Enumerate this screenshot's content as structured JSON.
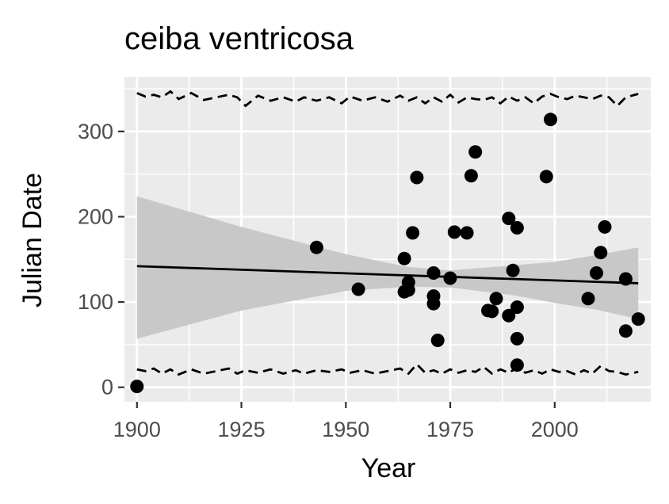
{
  "chart_data": {
    "type": "scatter",
    "title": "ceiba ventricosa",
    "xlabel": "Year",
    "ylabel": "Julian Date",
    "xlim": [
      1897,
      2023
    ],
    "ylim": [
      -17,
      364
    ],
    "x_ticks": [
      1900,
      1925,
      1950,
      1975,
      2000
    ],
    "y_ticks": [
      0,
      100,
      200,
      300
    ],
    "grid": true,
    "colors": {
      "panel": "#ebebeb",
      "grid": "#ffffff",
      "points": "#000000",
      "ribbon": "#c8c8c8",
      "tick_label": "#4d4d4d"
    },
    "points": [
      {
        "x": 1900,
        "y": 1
      },
      {
        "x": 1943,
        "y": 164
      },
      {
        "x": 1953,
        "y": 115
      },
      {
        "x": 1964,
        "y": 151
      },
      {
        "x": 1964,
        "y": 112
      },
      {
        "x": 1965,
        "y": 123
      },
      {
        "x": 1965,
        "y": 114
      },
      {
        "x": 1966,
        "y": 181
      },
      {
        "x": 1967,
        "y": 246
      },
      {
        "x": 1971,
        "y": 134
      },
      {
        "x": 1971,
        "y": 107
      },
      {
        "x": 1971,
        "y": 98
      },
      {
        "x": 1972,
        "y": 55
      },
      {
        "x": 1975,
        "y": 128
      },
      {
        "x": 1976,
        "y": 182
      },
      {
        "x": 1979,
        "y": 181
      },
      {
        "x": 1980,
        "y": 248
      },
      {
        "x": 1981,
        "y": 276
      },
      {
        "x": 1984,
        "y": 90
      },
      {
        "x": 1985,
        "y": 89
      },
      {
        "x": 1986,
        "y": 104
      },
      {
        "x": 1989,
        "y": 198
      },
      {
        "x": 1989,
        "y": 84
      },
      {
        "x": 1990,
        "y": 137
      },
      {
        "x": 1991,
        "y": 187
      },
      {
        "x": 1991,
        "y": 94
      },
      {
        "x": 1991,
        "y": 57
      },
      {
        "x": 1991,
        "y": 26
      },
      {
        "x": 1998,
        "y": 247
      },
      {
        "x": 1999,
        "y": 314
      },
      {
        "x": 2008,
        "y": 104
      },
      {
        "x": 2010,
        "y": 134
      },
      {
        "x": 2011,
        "y": 158
      },
      {
        "x": 2012,
        "y": 188
      },
      {
        "x": 2017,
        "y": 127
      },
      {
        "x": 2017,
        "y": 66
      },
      {
        "x": 2020,
        "y": 80
      }
    ],
    "trend_line": {
      "x": [
        1900,
        2020
      ],
      "y": [
        142,
        122
      ]
    },
    "confidence_band": {
      "x": [
        1900,
        1925,
        1950,
        1965,
        1975,
        1990,
        2000,
        2010,
        2020
      ],
      "lower": [
        57,
        90,
        113,
        118,
        117,
        108,
        99,
        91,
        80
      ],
      "upper": [
        224,
        188,
        156,
        141,
        137,
        143,
        147,
        155,
        164
      ]
    },
    "upper_dashed": {
      "x": [
        1900,
        1902,
        1904,
        1906,
        1908,
        1910,
        1913,
        1916,
        1919,
        1922,
        1924,
        1926,
        1929,
        1932,
        1935,
        1938,
        1940,
        1943,
        1946,
        1949,
        1951,
        1954,
        1957,
        1960,
        1963,
        1965,
        1967,
        1969,
        1971,
        1973,
        1975,
        1977,
        1979,
        1981,
        1983,
        1985,
        1987,
        1989,
        1991,
        1993,
        1995,
        1997,
        1999,
        2001,
        2003,
        2005,
        2007,
        2009,
        2011,
        2013,
        2015,
        2017,
        2020
      ],
      "y": [
        345,
        341,
        343,
        340,
        347,
        338,
        345,
        337,
        340,
        343,
        340,
        330,
        342,
        336,
        340,
        335,
        340,
        336,
        340,
        333,
        341,
        336,
        340,
        335,
        342,
        336,
        340,
        333,
        340,
        335,
        343,
        334,
        340,
        338,
        337,
        340,
        333,
        341,
        336,
        340,
        333,
        341,
        344,
        340,
        338,
        342,
        340,
        338,
        342,
        340,
        330,
        340,
        344
      ]
    },
    "lower_dashed": {
      "x": [
        1900,
        1902,
        1904,
        1906,
        1908,
        1910,
        1913,
        1916,
        1919,
        1922,
        1924,
        1926,
        1929,
        1932,
        1935,
        1938,
        1940,
        1943,
        1946,
        1949,
        1951,
        1954,
        1957,
        1960,
        1963,
        1965,
        1967,
        1969,
        1971,
        1973,
        1975,
        1977,
        1979,
        1981,
        1983,
        1985,
        1987,
        1989,
        1991,
        1993,
        1995,
        1997,
        1999,
        2001,
        2003,
        2005,
        2007,
        2009,
        2011,
        2013,
        2015,
        2017,
        2020
      ],
      "y": [
        21,
        19,
        22,
        16,
        21,
        15,
        21,
        16,
        19,
        22,
        16,
        20,
        17,
        21,
        16,
        20,
        16,
        20,
        18,
        21,
        17,
        20,
        16,
        19,
        22,
        16,
        27,
        17,
        20,
        16,
        21,
        17,
        20,
        18,
        24,
        16,
        21,
        17,
        23,
        17,
        20,
        16,
        21,
        18,
        19,
        15,
        20,
        16,
        25,
        19,
        18,
        15,
        18
      ]
    }
  }
}
